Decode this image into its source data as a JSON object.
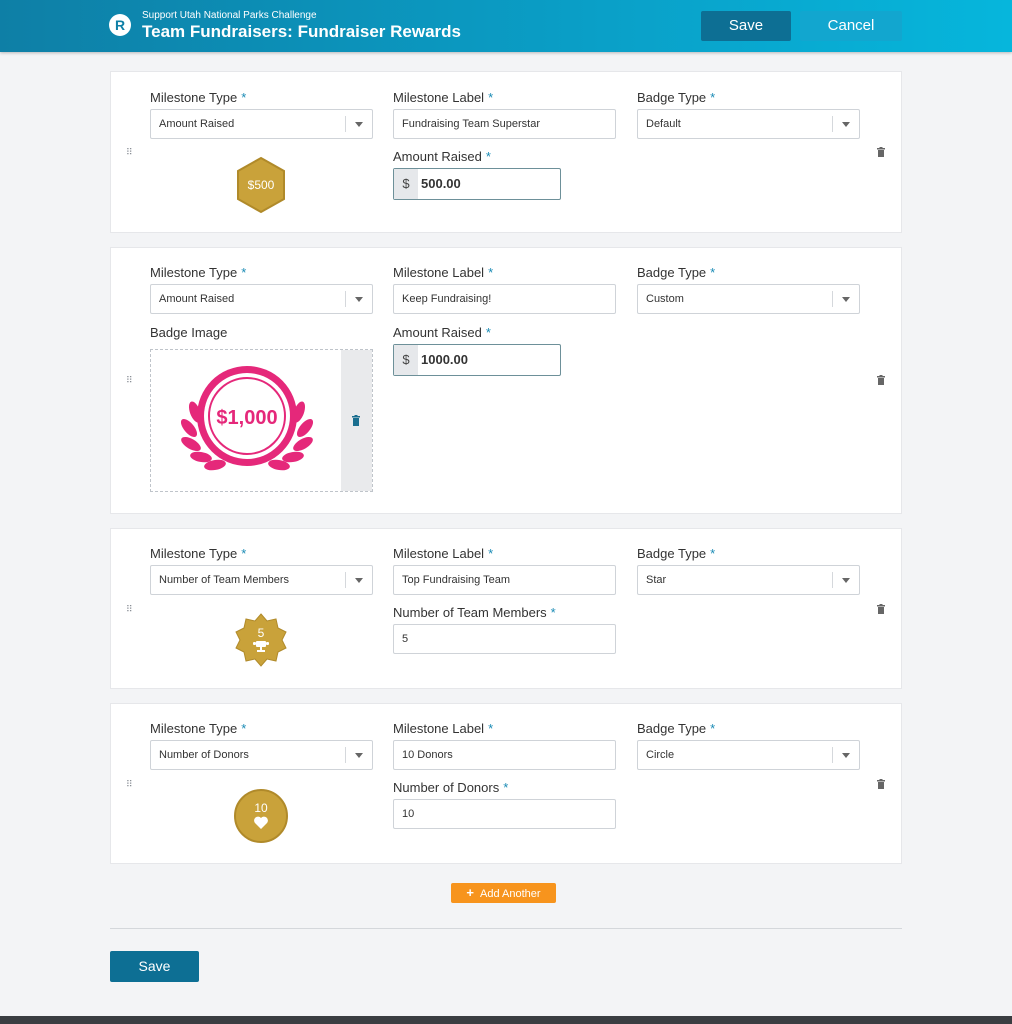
{
  "header": {
    "subtitle": "Support Utah National Parks Challenge",
    "title": "Team Fundraisers: Fundraiser Rewards",
    "logo_letter": "R",
    "save_label": "Save",
    "cancel_label": "Cancel"
  },
  "labels": {
    "milestone_type": "Milestone Type",
    "milestone_label": "Milestone Label",
    "badge_type": "Badge Type",
    "required": "*",
    "badge_image": "Badge Image",
    "currency": "$"
  },
  "milestones": [
    {
      "milestone_type": "Amount Raised",
      "milestone_label": "Fundraising Team Superstar",
      "badge_type": "Default",
      "value_label": "Amount Raised",
      "value": "500.00",
      "badge_text": "$500"
    },
    {
      "milestone_type": "Amount Raised",
      "milestone_label": "Keep Fundraising!",
      "badge_type": "Custom",
      "value_label": "Amount Raised",
      "value": "1000.00",
      "badge_text": "$1,000"
    },
    {
      "milestone_type": "Number of Team Members",
      "milestone_label": "Top Fundraising Team",
      "badge_type": "Star",
      "value_label": "Number of Team Members",
      "value": "5",
      "badge_text": "5"
    },
    {
      "milestone_type": "Number of Donors",
      "milestone_label": "10 Donors",
      "badge_type": "Circle",
      "value_label": "Number of Donors",
      "value": "10",
      "badge_text": "10"
    }
  ],
  "actions": {
    "add_another": "Add Another",
    "save": "Save"
  },
  "colors": {
    "header_start": "#0e7fa6",
    "header_end": "#06b6dc",
    "accent": "#1a8bb5",
    "gold": "#c9a23a",
    "pink": "#e5287a",
    "orange": "#f7941d"
  }
}
